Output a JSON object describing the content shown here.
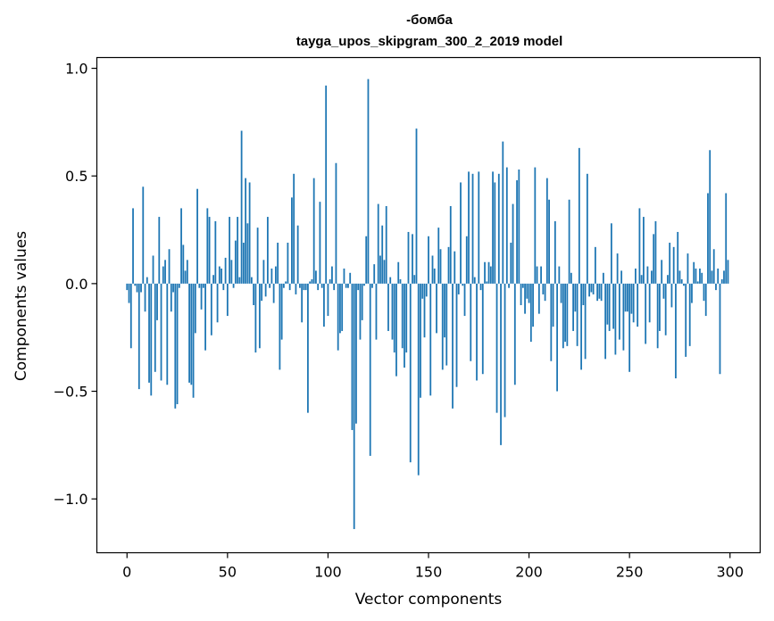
{
  "chart_data": {
    "type": "bar",
    "title": "-бомба",
    "subtitle": "tayga_upos_skipgram_300_2_2019 model",
    "xlabel": "Vector components",
    "ylabel": "Components values",
    "xlim": [
      -15,
      315
    ],
    "ylim": [
      -1.25,
      1.05
    ],
    "xticks": [
      0,
      50,
      100,
      150,
      200,
      250,
      300
    ],
    "yticks": [
      -1.0,
      -0.5,
      0.0,
      0.5,
      1.0
    ],
    "ytick_labels": [
      "−1.0",
      "−0.5",
      "0.0",
      "0.5",
      "1.0"
    ],
    "grid": false,
    "bar_color": "#1f77b4",
    "values": [
      -0.03,
      -0.09,
      -0.3,
      0.35,
      -0.01,
      -0.04,
      -0.49,
      -0.04,
      0.45,
      -0.13,
      0.03,
      -0.46,
      -0.52,
      0.13,
      -0.41,
      -0.17,
      0.31,
      -0.45,
      0.08,
      0.11,
      -0.47,
      0.16,
      -0.13,
      -0.04,
      -0.58,
      -0.56,
      -0.02,
      0.35,
      0.18,
      0.06,
      0.11,
      -0.46,
      -0.47,
      -0.53,
      -0.23,
      0.44,
      -0.02,
      -0.12,
      -0.02,
      -0.31,
      0.35,
      0.31,
      -0.24,
      0.04,
      0.29,
      -0.18,
      0.08,
      0.07,
      -0.03,
      0.12,
      -0.15,
      0.31,
      0.11,
      -0.02,
      0.2,
      0.31,
      0.03,
      0.71,
      0.19,
      0.49,
      0.28,
      0.47,
      0.03,
      -0.1,
      -0.32,
      0.26,
      -0.3,
      -0.08,
      0.11,
      -0.06,
      0.31,
      -0.02,
      0.07,
      -0.09,
      0.08,
      0.19,
      -0.4,
      -0.26,
      -0.02,
      0.01,
      0.19,
      -0.03,
      0.4,
      0.51,
      -0.05,
      0.27,
      -0.02,
      -0.18,
      -0.03,
      -0.03,
      -0.6,
      0.01,
      0.02,
      0.49,
      0.06,
      -0.03,
      0.38,
      -0.02,
      -0.2,
      0.92,
      -0.15,
      0.02,
      0.08,
      -0.03,
      0.56,
      -0.31,
      -0.23,
      -0.22,
      0.07,
      -0.02,
      -0.02,
      0.05,
      -0.68,
      -1.14,
      -0.65,
      -0.03,
      -0.26,
      -0.17,
      -0.01,
      0.22,
      0.95,
      -0.8,
      -0.02,
      0.09,
      -0.26,
      0.37,
      0.13,
      0.27,
      0.11,
      0.36,
      -0.22,
      0.03,
      -0.26,
      -0.32,
      -0.43,
      0.1,
      0.02,
      -0.3,
      -0.39,
      -0.32,
      0.24,
      -0.83,
      0.23,
      0.04,
      0.72,
      -0.89,
      -0.53,
      -0.07,
      -0.25,
      -0.06,
      0.22,
      -0.52,
      0.13,
      0.07,
      -0.23,
      0.26,
      0.16,
      -0.4,
      -0.25,
      -0.38,
      0.17,
      0.36,
      -0.58,
      0.15,
      -0.48,
      -0.05,
      0.47,
      -0.01,
      -0.15,
      0.22,
      0.52,
      -0.36,
      0.51,
      0.03,
      -0.45,
      0.52,
      -0.03,
      -0.42,
      0.1,
      0.01,
      0.1,
      0.08,
      0.52,
      0.47,
      -0.6,
      0.51,
      -0.75,
      0.66,
      -0.62,
      0.54,
      -0.02,
      0.19,
      0.37,
      -0.47,
      0.48,
      0.53,
      -0.1,
      -0.02,
      -0.14,
      -0.07,
      -0.09,
      -0.27,
      -0.2,
      0.54,
      0.08,
      -0.14,
      0.08,
      -0.05,
      -0.08,
      0.49,
      0.39,
      -0.36,
      -0.2,
      0.29,
      -0.5,
      0.08,
      -0.09,
      -0.3,
      -0.27,
      -0.29,
      0.39,
      0.05,
      -0.22,
      -0.13,
      -0.29,
      0.63,
      -0.4,
      -0.1,
      -0.35,
      0.51,
      -0.06,
      -0.04,
      -0.05,
      0.17,
      -0.08,
      -0.07,
      -0.08,
      0.05,
      -0.35,
      -0.19,
      -0.22,
      0.28,
      -0.21,
      -0.33,
      0.14,
      -0.26,
      0.06,
      -0.31,
      -0.13,
      -0.13,
      -0.41,
      -0.14,
      -0.18,
      0.07,
      -0.2,
      0.35,
      0.04,
      0.31,
      -0.28,
      0.08,
      -0.18,
      0.06,
      0.23,
      0.29,
      -0.3,
      -0.22,
      0.11,
      -0.07,
      -0.24,
      0.04,
      0.19,
      -0.11,
      0.17,
      -0.44,
      0.24,
      0.06,
      0.02,
      -0.01,
      -0.34,
      0.14,
      -0.29,
      -0.09,
      0.1,
      0.07,
      0.01,
      0.07,
      0.05,
      -0.08,
      -0.15,
      0.42,
      0.62,
      0.06,
      0.16,
      -0.03,
      0.07,
      -0.42,
      0.02,
      0.06,
      0.42,
      0.11
    ]
  }
}
